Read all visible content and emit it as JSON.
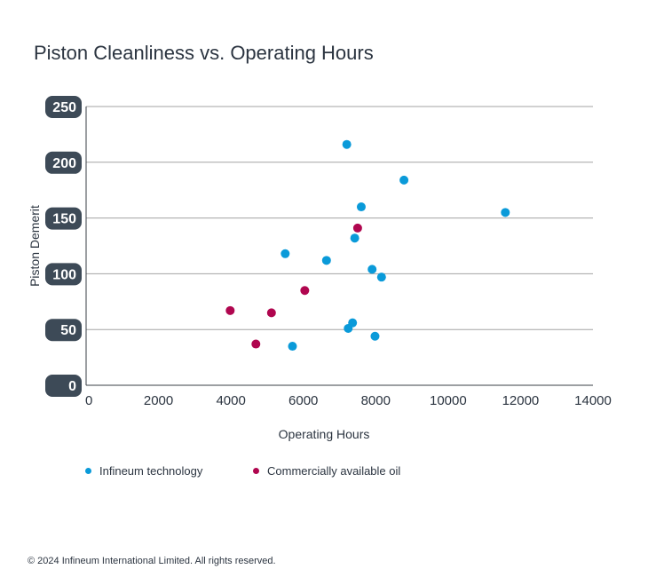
{
  "chart_data": {
    "type": "scatter",
    "title": "Piston Cleanliness vs. Operating Hours",
    "xlabel": "Operating Hours",
    "ylabel": "Piston Demerit",
    "xlim": [
      0,
      14000
    ],
    "ylim": [
      0,
      250
    ],
    "xticks": [
      "0",
      "2000",
      "4000",
      "6000",
      "8000",
      "10000",
      "12000",
      "14000"
    ],
    "yticks": [
      "0",
      "50",
      "100",
      "150",
      "200",
      "250"
    ],
    "grid": "horizontal",
    "legend_position": "bottom",
    "series": [
      {
        "name": "Infineum technology",
        "color": "#0a9ad9",
        "points": [
          {
            "x": 7200,
            "y": 216
          },
          {
            "x": 8780,
            "y": 184
          },
          {
            "x": 11580,
            "y": 155
          },
          {
            "x": 7600,
            "y": 160
          },
          {
            "x": 7420,
            "y": 132
          },
          {
            "x": 5500,
            "y": 118
          },
          {
            "x": 6640,
            "y": 112
          },
          {
            "x": 7900,
            "y": 104
          },
          {
            "x": 8160,
            "y": 97
          },
          {
            "x": 7360,
            "y": 56
          },
          {
            "x": 7240,
            "y": 51
          },
          {
            "x": 7980,
            "y": 44
          },
          {
            "x": 5700,
            "y": 35
          }
        ]
      },
      {
        "name": "Commercially available oil",
        "color": "#b0064f",
        "points": [
          {
            "x": 7500,
            "y": 141
          },
          {
            "x": 6040,
            "y": 85
          },
          {
            "x": 3980,
            "y": 67
          },
          {
            "x": 5120,
            "y": 65
          },
          {
            "x": 4690,
            "y": 37
          }
        ]
      }
    ]
  },
  "footer": {
    "copyright": "© 2024 Infineum International Limited. All rights reserved."
  }
}
